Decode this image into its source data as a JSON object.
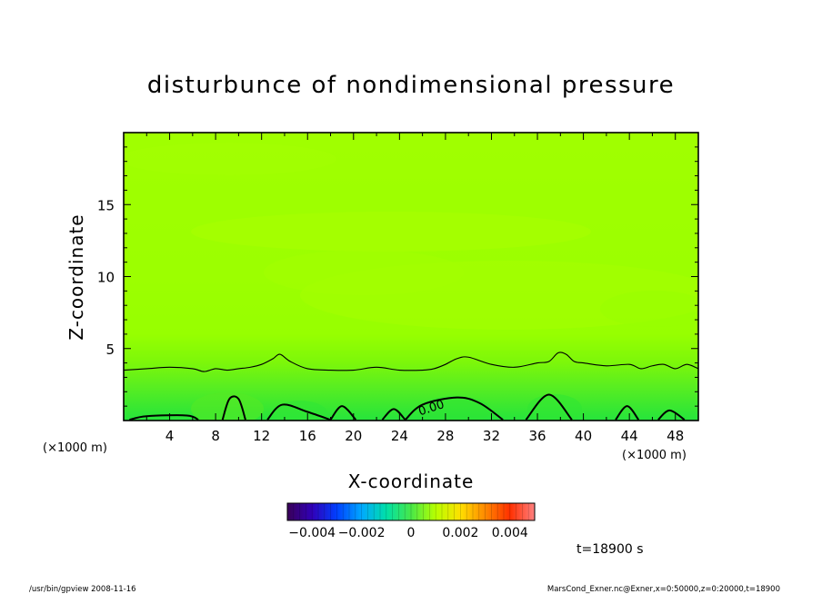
{
  "chart_data": {
    "type": "heatmap",
    "title": "disturbunce of nondimensional pressure",
    "xlabel": "X-coordinate",
    "ylabel": "Z-coordinate",
    "x_unit_left": "(×1000 m)",
    "x_unit_right": "(×1000 m)",
    "xlim": [
      0,
      50
    ],
    "ylim": [
      0,
      20
    ],
    "x_ticks": [
      4,
      8,
      12,
      16,
      20,
      24,
      28,
      32,
      36,
      40,
      44,
      48
    ],
    "y_ticks": [
      5,
      10,
      15
    ],
    "grid": false,
    "contour_label": "0.00",
    "contour_level": 0.0,
    "contour_upper": {
      "x": [
        0,
        2,
        4,
        6,
        7,
        8,
        9,
        10,
        11,
        12,
        13,
        13.6,
        14.5,
        16,
        18,
        20,
        22,
        24,
        26,
        27,
        28,
        29,
        30,
        32,
        34,
        36,
        37,
        37.8,
        38.5,
        39.2,
        40,
        42,
        44,
        45,
        46,
        47,
        48,
        49,
        50
      ],
      "y": [
        3.5,
        3.6,
        3.7,
        3.6,
        3.4,
        3.6,
        3.5,
        3.6,
        3.7,
        3.9,
        4.3,
        4.6,
        4.1,
        3.6,
        3.5,
        3.5,
        3.7,
        3.5,
        3.5,
        3.6,
        3.9,
        4.3,
        4.4,
        3.9,
        3.7,
        4.0,
        4.1,
        4.7,
        4.6,
        4.1,
        4.0,
        3.8,
        3.9,
        3.6,
        3.8,
        3.9,
        3.6,
        3.9,
        3.6
      ]
    },
    "contour_bumps": [
      {
        "x": [
          8.6,
          9.2,
          10.0,
          10.6
        ],
        "y": [
          0.05,
          1.5,
          1.5,
          0.05
        ]
      },
      {
        "x": [
          12.5,
          13.8,
          16.0,
          18.0
        ],
        "y": [
          0.05,
          1.1,
          0.6,
          0.05
        ]
      },
      {
        "x": [
          18.0,
          19.0,
          20.2
        ],
        "y": [
          0.05,
          1.0,
          0.05
        ]
      },
      {
        "x": [
          22.5,
          23.5,
          24.5
        ],
        "y": [
          0.05,
          0.8,
          0.05
        ]
      },
      {
        "x": [
          24.5,
          26.0,
          29.0,
          31.0,
          33.0
        ],
        "y": [
          0.05,
          1.1,
          1.6,
          1.2,
          0.05
        ]
      },
      {
        "x": [
          35.0,
          37.0,
          39.0
        ],
        "y": [
          0.05,
          1.8,
          0.05
        ]
      },
      {
        "x": [
          42.8,
          43.8,
          44.8
        ],
        "y": [
          0.05,
          1.0,
          0.05
        ]
      },
      {
        "x": [
          46.5,
          47.5,
          48.8
        ],
        "y": [
          0.05,
          0.7,
          0.05
        ]
      },
      {
        "x": [
          0.5,
          2.0,
          5.5,
          6.5
        ],
        "y": [
          0.05,
          0.3,
          0.35,
          0.05
        ]
      }
    ],
    "colorbar": {
      "tick_labels": [
        "−0.004",
        "−0.002",
        "0",
        "0.002",
        "0.004"
      ],
      "range": [
        -0.005,
        0.005
      ]
    },
    "time_label": "t=18900 s"
  },
  "footer": {
    "left": "/usr/bin/gpview   2008-11-16",
    "right": "MarsCond_Exner.nc@Exner,x=0:50000,z=0:20000,t=18900"
  },
  "colors": {
    "field_main": "#99ff00",
    "field_upper_light": "#a6ff00",
    "field_mid_light": "#aaff00",
    "field_low": "#55ee22",
    "field_bottom": "#22e63a",
    "axes": "#000000"
  }
}
